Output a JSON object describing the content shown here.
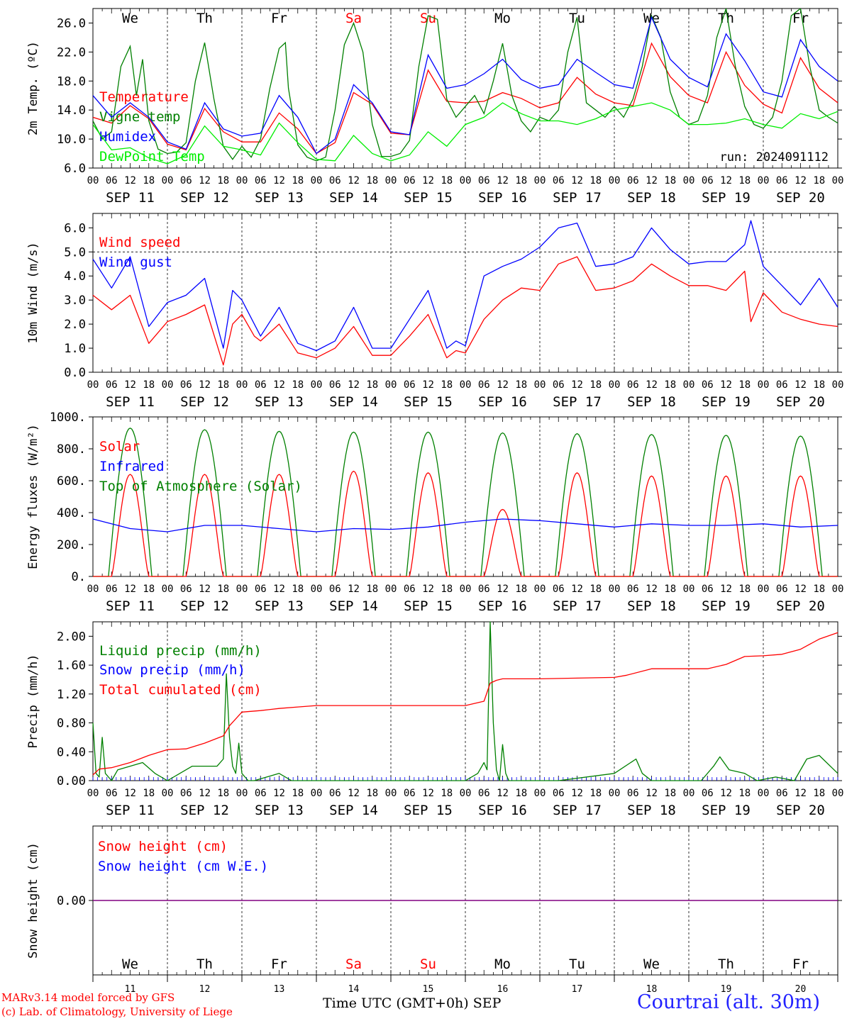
{
  "meteogram": {
    "run": "run: 2024091112",
    "station": "Courtrai (alt. 30m)",
    "credit_model": "MARv3.14 model forced by GFS",
    "credit_lab": "(c) Lab. of Climatology, University of Liege",
    "x_axis_title": "Time UTC (GMT+0h)",
    "month_label": "SEP",
    "weekdays": [
      "We",
      "Th",
      "Fr",
      "Sa",
      "Su",
      "Mo",
      "Tu",
      "We",
      "Th",
      "Fr"
    ],
    "weekend_days": [
      3,
      4
    ],
    "day_numbers": [
      "11",
      "12",
      "13",
      "14",
      "15",
      "16",
      "17",
      "18",
      "19",
      "20"
    ],
    "date_labels": [
      "SEP 11",
      "SEP 12",
      "SEP 13",
      "SEP 14",
      "SEP 15",
      "SEP 16",
      "SEP 17",
      "SEP 18",
      "SEP 19",
      "SEP 20"
    ],
    "hour_labels": [
      "00",
      "06",
      "12",
      "18"
    ],
    "final_hour_label": "00"
  },
  "colors": {
    "red": "#ff0000",
    "green": "#008000",
    "blue": "#0000ff",
    "light_green": "#00ee00",
    "purple": "#800080",
    "footer_blue": "#2222ff"
  },
  "chart_data": [
    {
      "type": "line",
      "ylabel": "2m Temp. (ºC)",
      "ylim": [
        6,
        28
      ],
      "yticks": [
        "6.0",
        "10.0",
        "14.0",
        "18.0",
        "22.0",
        "26.0"
      ],
      "x_unit": "hours since SEP 11 00 UTC",
      "series": [
        {
          "name": "Temperature",
          "color": "red",
          "x": [
            0,
            6,
            12,
            18,
            24,
            30,
            36,
            42,
            48,
            54,
            60,
            66,
            72,
            78,
            84,
            90,
            96,
            102,
            108,
            114,
            120,
            126,
            132,
            138,
            144,
            150,
            156,
            162,
            168,
            174,
            180,
            186,
            192,
            198,
            204,
            210,
            216,
            222,
            228,
            234,
            240
          ],
          "values": [
            13.0,
            12.2,
            14.6,
            12.8,
            9.3,
            8.5,
            14.2,
            11.0,
            9.6,
            9.6,
            13.6,
            11.4,
            8.0,
            9.5,
            16.4,
            14.8,
            10.8,
            10.6,
            19.5,
            15.2,
            15.0,
            15.2,
            16.4,
            15.6,
            14.3,
            15.0,
            18.5,
            16.2,
            15.0,
            14.6,
            23.2,
            18.6,
            16.0,
            15.0,
            22.0,
            17.4,
            14.8,
            13.6,
            21.2,
            17.0,
            15.0
          ]
        },
        {
          "name": "Vigne temp",
          "color": "green",
          "x": [
            0,
            3,
            6,
            9,
            12,
            14,
            16,
            18,
            21,
            24,
            27,
            30,
            33,
            36,
            39,
            42,
            45,
            48,
            51,
            54,
            57,
            60,
            62,
            63,
            66,
            69,
            72,
            75,
            78,
            81,
            84,
            87,
            90,
            93,
            96,
            99,
            102,
            105,
            108,
            111,
            114,
            117,
            120,
            123,
            126,
            129,
            132,
            135,
            138,
            141,
            144,
            147,
            150,
            153,
            156,
            159,
            162,
            165,
            168,
            171,
            174,
            177,
            180,
            183,
            186,
            189,
            192,
            195,
            198,
            201,
            204,
            207,
            210,
            213,
            216,
            219,
            222,
            225,
            228,
            231,
            234,
            237,
            240
          ],
          "values": [
            12.5,
            10.0,
            11.0,
            20.0,
            22.8,
            16.0,
            21.0,
            12.5,
            8.6,
            8.0,
            8.2,
            9.5,
            18.0,
            23.3,
            15.5,
            9.0,
            7.2,
            9.0,
            7.5,
            10.0,
            17.0,
            22.5,
            23.3,
            17.0,
            9.2,
            7.5,
            7.0,
            7.5,
            14.0,
            23.0,
            26.0,
            22.0,
            12.0,
            7.6,
            7.6,
            8.0,
            9.8,
            20.0,
            27.0,
            26.5,
            15.5,
            13.0,
            14.5,
            16.0,
            13.5,
            18.0,
            23.2,
            16.0,
            12.5,
            11.0,
            13.0,
            12.5,
            14.0,
            22.0,
            26.8,
            15.0,
            14.0,
            13.0,
            14.5,
            13.0,
            15.5,
            20.0,
            27.0,
            24.0,
            16.5,
            13.0,
            12.0,
            12.5,
            16.0,
            24.0,
            28.0,
            20.0,
            14.5,
            12.0,
            11.5,
            13.0,
            18.0,
            27.0,
            28.0,
            20.0,
            14.0,
            13.0,
            12.2
          ]
        },
        {
          "name": "Humidex",
          "color": "blue",
          "x": [
            0,
            6,
            12,
            18,
            24,
            30,
            36,
            42,
            48,
            54,
            60,
            66,
            72,
            78,
            84,
            90,
            96,
            102,
            108,
            114,
            120,
            126,
            132,
            138,
            144,
            150,
            156,
            162,
            168,
            174,
            180,
            186,
            192,
            198,
            204,
            210,
            216,
            222,
            228,
            234,
            240
          ],
          "values": [
            16.0,
            13.0,
            15.0,
            13.0,
            9.6,
            8.6,
            15.0,
            11.4,
            10.4,
            10.8,
            16.0,
            13.0,
            8.0,
            10.0,
            17.5,
            15.0,
            11.0,
            10.6,
            21.6,
            17.0,
            17.5,
            19.0,
            21.0,
            18.2,
            17.0,
            17.5,
            21.0,
            19.2,
            17.5,
            17.0,
            26.8,
            21.0,
            18.5,
            17.2,
            24.5,
            20.8,
            16.5,
            15.8,
            23.7,
            20.0,
            18.0
          ]
        },
        {
          "name": "DewPoint Temp",
          "color": "light_green",
          "x": [
            0,
            6,
            12,
            18,
            24,
            30,
            36,
            42,
            48,
            54,
            60,
            66,
            72,
            78,
            84,
            90,
            96,
            102,
            108,
            114,
            120,
            126,
            132,
            138,
            144,
            150,
            156,
            162,
            168,
            174,
            180,
            186,
            192,
            198,
            204,
            210,
            216,
            222,
            228,
            234,
            240
          ],
          "values": [
            12.0,
            8.5,
            8.8,
            7.4,
            6.6,
            7.8,
            11.8,
            9.0,
            8.5,
            7.8,
            12.2,
            9.5,
            7.2,
            7.0,
            10.5,
            8.0,
            7.0,
            7.8,
            11.0,
            9.0,
            12.0,
            13.0,
            15.0,
            13.5,
            12.5,
            12.5,
            12.0,
            12.8,
            14.0,
            14.5,
            15.0,
            14.0,
            12.0,
            12.0,
            12.2,
            12.8,
            12.0,
            11.5,
            13.5,
            12.8,
            13.8
          ]
        }
      ]
    },
    {
      "type": "line",
      "ylabel": "10m Wind (m/s)",
      "ylim": [
        0,
        6.6
      ],
      "yticks": [
        "0.0",
        "1.0",
        "2.0",
        "3.0",
        "4.0",
        "5.0",
        "6.0"
      ],
      "reference_line": 5.0,
      "x_unit": "hours since SEP 11 00 UTC",
      "series": [
        {
          "name": "Wind speed",
          "color": "red",
          "x": [
            0,
            6,
            12,
            18,
            24,
            30,
            36,
            42,
            45,
            48,
            52,
            54,
            60,
            66,
            72,
            78,
            84,
            90,
            96,
            102,
            108,
            114,
            117,
            120,
            126,
            132,
            138,
            144,
            150,
            156,
            162,
            168,
            174,
            180,
            186,
            192,
            198,
            204,
            210,
            212,
            216,
            222,
            228,
            234,
            240
          ],
          "values": [
            3.2,
            2.6,
            3.2,
            1.2,
            2.1,
            2.4,
            2.8,
            0.3,
            2.0,
            2.4,
            1.5,
            1.3,
            2.0,
            0.8,
            0.6,
            1.0,
            1.9,
            0.7,
            0.7,
            1.5,
            2.4,
            0.6,
            0.9,
            0.8,
            2.2,
            3.0,
            3.5,
            3.4,
            4.5,
            4.8,
            3.4,
            3.5,
            3.8,
            4.5,
            4.0,
            3.6,
            3.6,
            3.4,
            4.2,
            2.1,
            3.3,
            2.5,
            2.2,
            2.0,
            1.9
          ]
        },
        {
          "name": "Wind gust",
          "color": "blue",
          "x": [
            0,
            6,
            12,
            18,
            24,
            30,
            36,
            42,
            45,
            48,
            52,
            54,
            60,
            66,
            72,
            78,
            84,
            90,
            96,
            102,
            108,
            114,
            117,
            120,
            126,
            132,
            138,
            144,
            150,
            156,
            162,
            168,
            174,
            180,
            186,
            192,
            198,
            204,
            210,
            212,
            216,
            222,
            228,
            234,
            240
          ],
          "values": [
            4.7,
            3.5,
            4.8,
            1.9,
            2.9,
            3.2,
            3.9,
            1.0,
            3.4,
            3.0,
            2.0,
            1.5,
            2.7,
            1.2,
            0.9,
            1.3,
            2.7,
            1.0,
            1.0,
            2.2,
            3.4,
            1.0,
            1.3,
            1.1,
            4.0,
            4.4,
            4.7,
            5.2,
            6.0,
            6.2,
            4.4,
            4.5,
            4.8,
            6.0,
            5.1,
            4.5,
            4.6,
            4.6,
            5.3,
            6.3,
            4.4,
            3.6,
            2.8,
            3.9,
            2.7
          ]
        }
      ]
    },
    {
      "type": "line",
      "ylabel": "Energy fluxes (W/m²)",
      "ylim": [
        0,
        1000
      ],
      "yticks": [
        "0.",
        "200.",
        "400.",
        "600.",
        "800.",
        "1000."
      ],
      "x_unit": "hours since SEP 11 00 UTC",
      "top_of_atmosphere_daily_peak": [
        930,
        920,
        910,
        905,
        905,
        900,
        895,
        890,
        885,
        880
      ],
      "solar_daily_peak": [
        640,
        640,
        640,
        660,
        650,
        420,
        650,
        630,
        630,
        630
      ],
      "series_names": [
        "Solar",
        "Infrared",
        "Top of Atmosphere (Solar)"
      ],
      "series_colors": [
        "red",
        "blue",
        "green"
      ],
      "infrared": {
        "x": [
          0,
          12,
          24,
          36,
          48,
          60,
          72,
          84,
          96,
          108,
          120,
          132,
          144,
          156,
          168,
          180,
          192,
          204,
          216,
          228,
          240
        ],
        "values": [
          360,
          300,
          280,
          320,
          320,
          300,
          280,
          300,
          295,
          310,
          340,
          360,
          350,
          330,
          310,
          330,
          320,
          320,
          330,
          310,
          320
        ]
      }
    },
    {
      "type": "line",
      "ylabel": "Precip (mm/h)",
      "ylim": [
        0,
        2.2
      ],
      "yticks": [
        "0.00",
        "0.40",
        "0.80",
        "1.20",
        "1.60",
        "2.00"
      ],
      "x_unit": "hours since SEP 11 00 UTC",
      "series": [
        {
          "name": "Liquid precip (mm/h)",
          "color": "green",
          "x": [
            0,
            1,
            2,
            3,
            4,
            6,
            8,
            12,
            16,
            20,
            24,
            28,
            32,
            36,
            40,
            42,
            43,
            44,
            45,
            46,
            47,
            48,
            50,
            52,
            56,
            60,
            64,
            72,
            84,
            96,
            108,
            120,
            124,
            126,
            127,
            128,
            129,
            130,
            131,
            132,
            133,
            134,
            136,
            140,
            150,
            168,
            175,
            177,
            180,
            196,
            200,
            202,
            205,
            210,
            214,
            220,
            226,
            230,
            234,
            240
          ],
          "values": [
            0.8,
            0.1,
            0.05,
            0.6,
            0.1,
            0.0,
            0.15,
            0.2,
            0.25,
            0.1,
            0.0,
            0.1,
            0.2,
            0.2,
            0.2,
            0.3,
            1.48,
            0.6,
            0.2,
            0.1,
            0.52,
            0.1,
            0.0,
            0.0,
            0.05,
            0.1,
            0.0,
            0.0,
            0.0,
            0.0,
            0.0,
            0.0,
            0.1,
            0.25,
            0.15,
            2.2,
            0.8,
            0.15,
            0.0,
            0.5,
            0.1,
            0.0,
            0.0,
            0.0,
            0.0,
            0.1,
            0.3,
            0.1,
            0.0,
            0.0,
            0.2,
            0.33,
            0.15,
            0.1,
            0.0,
            0.05,
            0.0,
            0.3,
            0.35,
            0.1
          ]
        },
        {
          "name": "Snow precip (mm/h)",
          "color": "blue",
          "x": [
            0,
            240
          ],
          "values": [
            0,
            0
          ]
        },
        {
          "name": "Total cumulated (cm)",
          "color": "red",
          "x": [
            0,
            2,
            6,
            12,
            18,
            24,
            30,
            36,
            42,
            44,
            48,
            54,
            60,
            66,
            72,
            84,
            96,
            108,
            120,
            126,
            128,
            130,
            132,
            144,
            156,
            168,
            172,
            180,
            192,
            198,
            204,
            210,
            216,
            222,
            228,
            234,
            240
          ],
          "values": [
            0.08,
            0.16,
            0.18,
            0.25,
            0.35,
            0.43,
            0.44,
            0.52,
            0.62,
            0.76,
            0.95,
            0.97,
            1.0,
            1.02,
            1.04,
            1.04,
            1.04,
            1.04,
            1.04,
            1.1,
            1.35,
            1.39,
            1.41,
            1.41,
            1.42,
            1.43,
            1.46,
            1.55,
            1.55,
            1.55,
            1.61,
            1.72,
            1.73,
            1.75,
            1.82,
            1.96,
            2.05
          ]
        }
      ]
    },
    {
      "type": "line",
      "ylabel": "Snow height (cm)",
      "ylim": [
        -2,
        2
      ],
      "yticks": [
        "0.00"
      ],
      "x_unit": "hours since SEP 11 00 UTC",
      "series": [
        {
          "name": "Snow height (cm)",
          "color": "red",
          "x": [
            0,
            240
          ],
          "values": [
            0,
            0
          ]
        },
        {
          "name": "Snow height (cm W.E.)",
          "color": "blue",
          "x": [
            0,
            240
          ],
          "values": [
            0,
            0
          ]
        }
      ]
    }
  ]
}
